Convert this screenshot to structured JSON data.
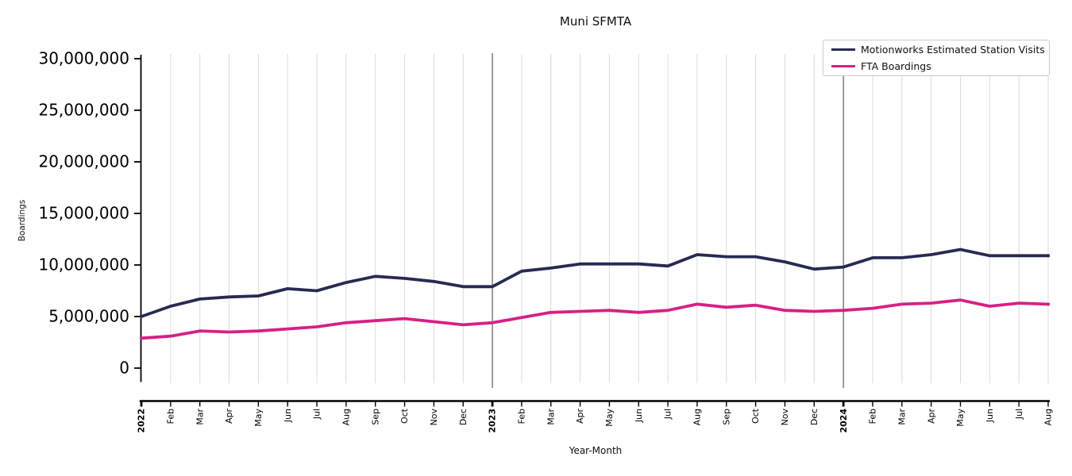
{
  "chart_data": {
    "type": "line",
    "title": "Muni SFMTA",
    "xlabel": "Year-Month",
    "ylabel": "Boardings",
    "x_tick_labels": [
      "2022",
      "Feb",
      "Mar",
      "Apr",
      "May",
      "Jun",
      "Jul",
      "Aug",
      "Sep",
      "Oct",
      "Nov",
      "Dec",
      "2023",
      "Feb",
      "Mar",
      "Apr",
      "May",
      "Jun",
      "Jul",
      "Aug",
      "Sep",
      "Oct",
      "Nov",
      "Dec",
      "2024",
      "Feb",
      "Mar",
      "Apr",
      "May",
      "Jun",
      "Jul",
      "Aug"
    ],
    "bold_x_tick_indices": [
      0,
      12,
      24
    ],
    "year_line_indices": [
      12,
      24
    ],
    "y_ticks": [
      0,
      5000000,
      10000000,
      15000000,
      20000000,
      25000000,
      30000000
    ],
    "y_tick_labels": [
      "0",
      "5,000,000",
      "10,000,000",
      "15,000,000",
      "20,000,000",
      "25,000,000",
      "30,000,000"
    ],
    "ylim": [
      0,
      30000000
    ],
    "grid": "vertical monthly gridlines only, no horizontal gridlines",
    "legend_position": "upper right",
    "series": [
      {
        "name": "Motionworks Estimated Station Visits",
        "color": "#272b52",
        "values": [
          5000000,
          6000000,
          6700000,
          6900000,
          7000000,
          7700000,
          7500000,
          8300000,
          8900000,
          8700000,
          8400000,
          7900000,
          7900000,
          9400000,
          9700000,
          10100000,
          10100000,
          10100000,
          9900000,
          11000000,
          10800000,
          10800000,
          10300000,
          9600000,
          9800000,
          10700000,
          10700000,
          11000000,
          11500000,
          10900000,
          10900000,
          10900000
        ]
      },
      {
        "name": "FTA Boardings",
        "color": "#d62183",
        "values": [
          2900000,
          3100000,
          3600000,
          3500000,
          3600000,
          3800000,
          4000000,
          4400000,
          4600000,
          4800000,
          4500000,
          4200000,
          4400000,
          4900000,
          5400000,
          5500000,
          5600000,
          5400000,
          5600000,
          6200000,
          5900000,
          6100000,
          5600000,
          5500000,
          5600000,
          5800000,
          6200000,
          6300000,
          6600000,
          6000000,
          6300000,
          6200000
        ]
      }
    ]
  },
  "colors": {
    "background": "#ffffff",
    "gridline": "#dbdbdb",
    "year_line": "#3a3a3a",
    "axis": "#000000",
    "legend_border": "#cbcbcb",
    "text": "#0f0f0f"
  }
}
